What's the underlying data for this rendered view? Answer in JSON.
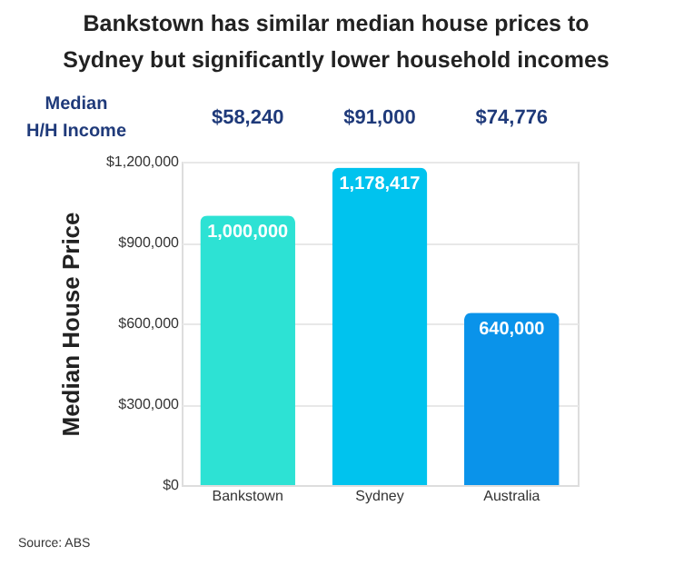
{
  "chart_data": {
    "type": "bar",
    "title": [
      "Bankstown has similar median house prices to",
      "Sydney but significantly lower household incomes"
    ],
    "ylabel": "Median House Price",
    "categories": [
      "Bankstown",
      "Sydney",
      "Australia"
    ],
    "values": [
      1000000,
      1178417,
      640000
    ],
    "colors": [
      "#2de2d4",
      "#00c3ee",
      "#0a93ea"
    ],
    "value_labels": [
      "1,000,000",
      "1,178,417",
      "640,000"
    ],
    "ylim": [
      0,
      1200000
    ],
    "yticks": [
      {
        "value": 0,
        "label": "$0"
      },
      {
        "value": 300000,
        "label": "$300,000"
      },
      {
        "value": 600000,
        "label": "$600,000"
      },
      {
        "value": 900000,
        "label": "$900,000"
      },
      {
        "value": 1200000,
        "label": "$1,200,000"
      }
    ],
    "grid": "y",
    "annotations": [
      "Median\nH/H Income",
      "$58,240",
      "$91,000",
      "$74,776",
      "Source: ABS"
    ]
  }
}
